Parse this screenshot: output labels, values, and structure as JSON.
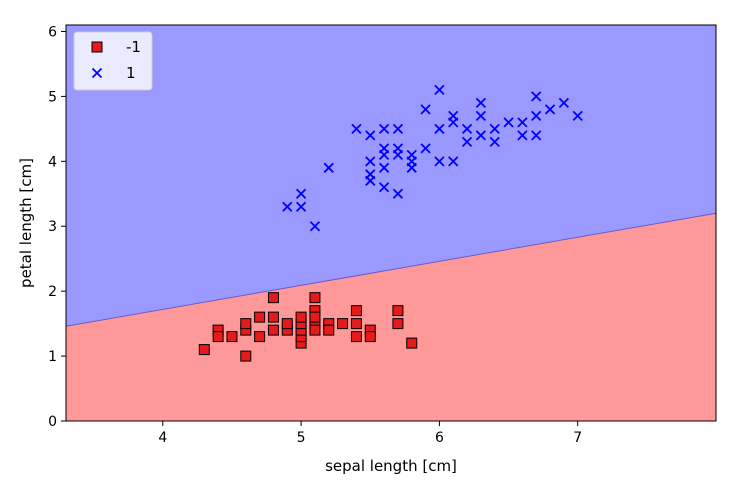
{
  "chart_data": {
    "type": "scatter",
    "xlabel": "sepal length [cm]",
    "ylabel": "petal length [cm]",
    "xlim": [
      3.3,
      8.0
    ],
    "ylim": [
      0,
      6.1
    ],
    "xticks": [
      4,
      5,
      6,
      7
    ],
    "yticks": [
      0,
      1,
      2,
      3,
      4,
      5,
      6
    ],
    "grid": false,
    "legend_position": "top-left",
    "decision_boundary": {
      "line": [
        [
          3.3,
          1.46
        ],
        [
          8.0,
          3.2
        ]
      ],
      "region_above": {
        "label": "1",
        "color": "#9999ff"
      },
      "region_below": {
        "label": "-1",
        "color": "#ff9999"
      }
    },
    "series": [
      {
        "name": "-1",
        "marker": "square",
        "color": "#e41a1c",
        "points": [
          [
            4.3,
            1.1
          ],
          [
            4.4,
            1.4
          ],
          [
            4.4,
            1.3
          ],
          [
            4.5,
            1.3
          ],
          [
            4.6,
            1.0
          ],
          [
            4.6,
            1.4
          ],
          [
            4.6,
            1.5
          ],
          [
            4.7,
            1.3
          ],
          [
            4.7,
            1.6
          ],
          [
            4.8,
            1.9
          ],
          [
            4.8,
            1.6
          ],
          [
            4.8,
            1.4
          ],
          [
            4.9,
            1.4
          ],
          [
            4.9,
            1.5
          ],
          [
            5.0,
            1.2
          ],
          [
            5.0,
            1.3
          ],
          [
            5.0,
            1.4
          ],
          [
            5.0,
            1.5
          ],
          [
            5.0,
            1.6
          ],
          [
            5.1,
            1.9
          ],
          [
            5.1,
            1.7
          ],
          [
            5.1,
            1.5
          ],
          [
            5.1,
            1.4
          ],
          [
            5.1,
            1.6
          ],
          [
            5.2,
            1.5
          ],
          [
            5.2,
            1.4
          ],
          [
            5.3,
            1.5
          ],
          [
            5.4,
            1.7
          ],
          [
            5.4,
            1.5
          ],
          [
            5.4,
            1.3
          ],
          [
            5.5,
            1.4
          ],
          [
            5.5,
            1.3
          ],
          [
            5.7,
            1.7
          ],
          [
            5.7,
            1.5
          ],
          [
            5.8,
            1.2
          ]
        ]
      },
      {
        "name": "1",
        "marker": "x",
        "color": "#0000ff",
        "points": [
          [
            4.9,
            3.3
          ],
          [
            5.0,
            3.5
          ],
          [
            5.0,
            3.3
          ],
          [
            5.1,
            3.0
          ],
          [
            5.2,
            3.9
          ],
          [
            5.4,
            4.5
          ],
          [
            5.5,
            4.4
          ],
          [
            5.5,
            4.0
          ],
          [
            5.5,
            3.8
          ],
          [
            5.5,
            3.7
          ],
          [
            5.6,
            4.5
          ],
          [
            5.6,
            4.2
          ],
          [
            5.6,
            4.1
          ],
          [
            5.6,
            3.9
          ],
          [
            5.6,
            3.6
          ],
          [
            5.7,
            4.5
          ],
          [
            5.7,
            4.2
          ],
          [
            5.7,
            4.1
          ],
          [
            5.7,
            3.5
          ],
          [
            5.8,
            4.1
          ],
          [
            5.8,
            4.0
          ],
          [
            5.8,
            3.9
          ],
          [
            5.9,
            4.8
          ],
          [
            5.9,
            4.2
          ],
          [
            6.0,
            5.1
          ],
          [
            6.0,
            4.5
          ],
          [
            6.0,
            4.0
          ],
          [
            6.1,
            4.7
          ],
          [
            6.1,
            4.6
          ],
          [
            6.1,
            4.0
          ],
          [
            6.2,
            4.5
          ],
          [
            6.2,
            4.3
          ],
          [
            6.3,
            4.9
          ],
          [
            6.3,
            4.7
          ],
          [
            6.3,
            4.4
          ],
          [
            6.4,
            4.5
          ],
          [
            6.4,
            4.3
          ],
          [
            6.5,
            4.6
          ],
          [
            6.6,
            4.6
          ],
          [
            6.6,
            4.4
          ],
          [
            6.7,
            5.0
          ],
          [
            6.7,
            4.7
          ],
          [
            6.7,
            4.4
          ],
          [
            6.8,
            4.8
          ],
          [
            6.9,
            4.9
          ],
          [
            7.0,
            4.7
          ]
        ]
      }
    ]
  }
}
